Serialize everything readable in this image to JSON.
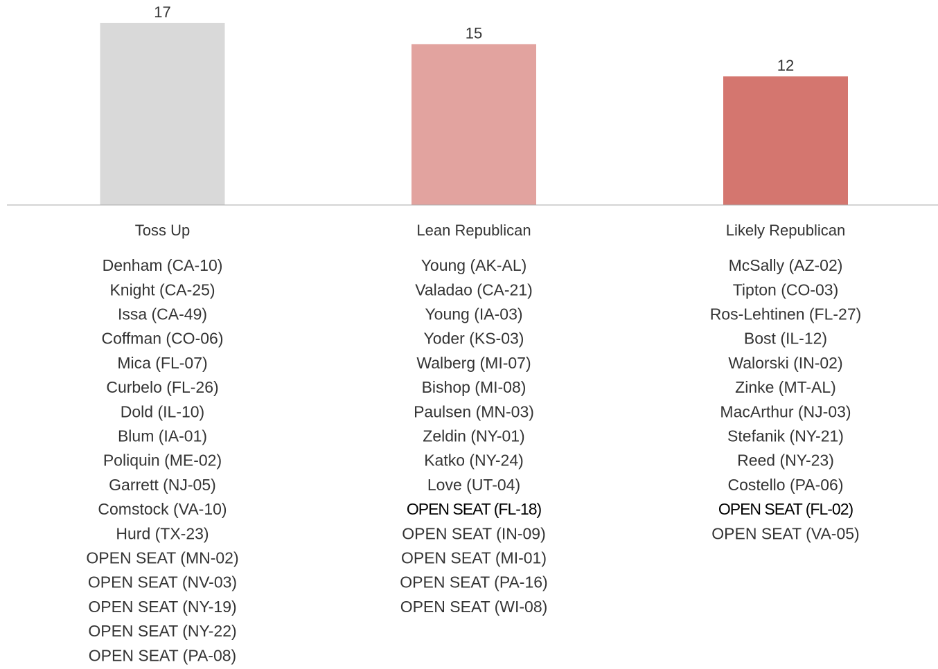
{
  "chart_data": {
    "type": "bar",
    "categories": [
      "Toss Up",
      "Lean Republican",
      "Likely Republican"
    ],
    "values": [
      17,
      15,
      12
    ],
    "colors": [
      "#d9d9d9",
      "#e2a39f",
      "#d4766f"
    ],
    "ylim": [
      0,
      19
    ],
    "lists": [
      {
        "items": [
          "Denham (CA-10)",
          "Knight (CA-25)",
          "Issa (CA-49)",
          "Coffman (CO-06)",
          "Mica (FL-07)",
          "Curbelo (FL-26)",
          "Dold (IL-10)",
          "Blum (IA-01)",
          "Poliquin (ME-02)",
          "Garrett (NJ-05)",
          "Comstock (VA-10)",
          "Hurd (TX-23)",
          "OPEN SEAT (MN-02)",
          "OPEN SEAT (NV-03)",
          "OPEN SEAT (NY-19)",
          "OPEN SEAT (NY-22)",
          "OPEN SEAT (PA-08)"
        ],
        "bold": []
      },
      {
        "items": [
          "Young (AK-AL)",
          "Valadao (CA-21)",
          "Young (IA-03)",
          "Yoder (KS-03)",
          "Walberg (MI-07)",
          "Bishop (MI-08)",
          "Paulsen (MN-03)",
          "Zeldin (NY-01)",
          "Katko (NY-24)",
          "Love (UT-04)",
          "OPEN SEAT (FL-18)",
          "OPEN SEAT (IN-09)",
          "OPEN SEAT (MI-01)",
          "OPEN SEAT (PA-16)",
          "OPEN SEAT (WI-08)"
        ],
        "bold": [
          10
        ]
      },
      {
        "items": [
          "McSally (AZ-02)",
          "Tipton (CO-03)",
          "Ros-Lehtinen (FL-27)",
          "Bost (IL-12)",
          "Walorski (IN-02)",
          "Zinke (MT-AL)",
          "MacArthur (NJ-03)",
          "Stefanik (NY-21)",
          "Reed (NY-23)",
          "Costello (PA-06)",
          "OPEN SEAT (FL-02)",
          "OPEN SEAT (VA-05)"
        ],
        "bold": [
          10
        ]
      }
    ]
  }
}
